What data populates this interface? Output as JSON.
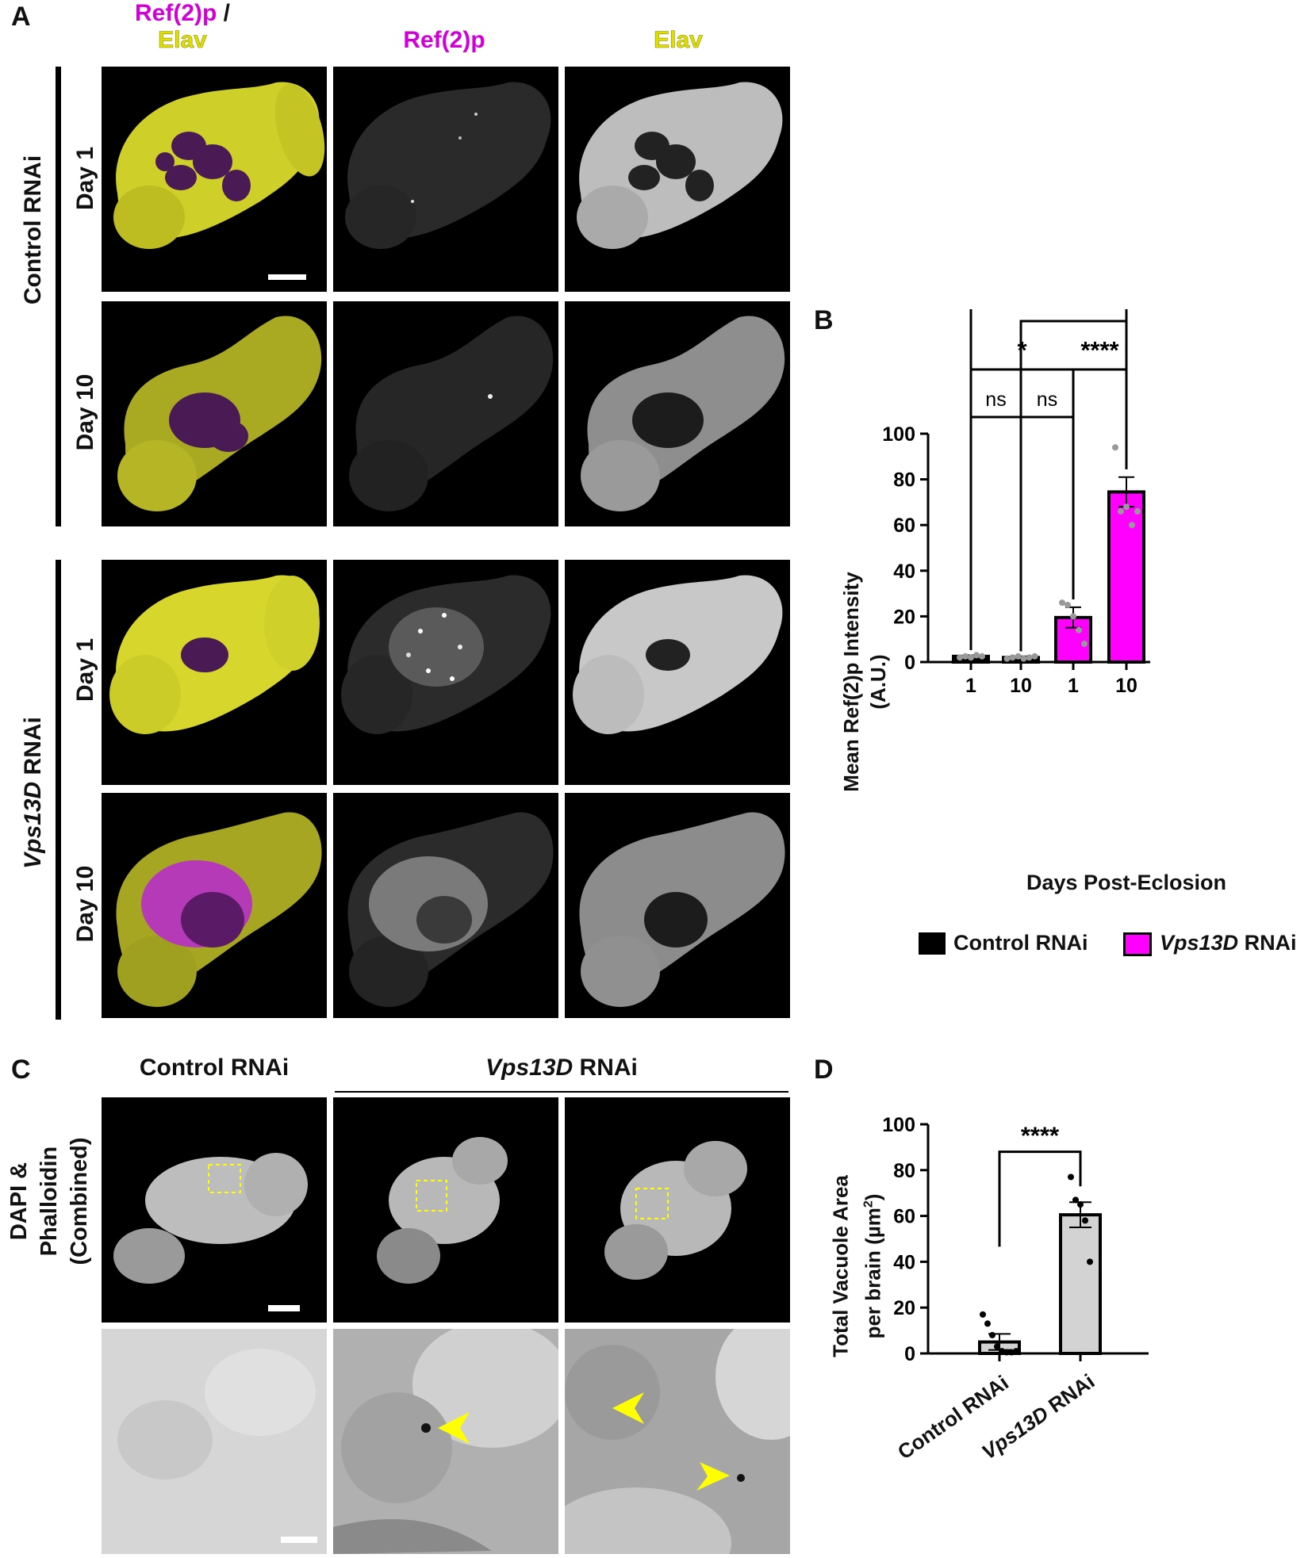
{
  "panel_a": {
    "letter": "A",
    "header_merge_1": "Ref(2)p",
    "header_merge_sep": " /",
    "header_merge_2": "Elav",
    "header_ref2p": "Ref(2)p",
    "header_elav": "Elav",
    "group_control": "Control RNAi",
    "group_vps_italic": "Vps13D",
    "group_vps_rest": " RNAi",
    "row_day1": "Day 1",
    "row_day10": "Day 10"
  },
  "panel_b": {
    "letter": "B",
    "ylabel_line1": "Mean Ref(2)p Intensity",
    "ylabel_line2": "(A.U.)",
    "xlabel": "Days Post-Eclosion",
    "legend_control": "Control RNAi",
    "legend_vps_italic": "Vps13D",
    "legend_vps_rest": " RNAi",
    "sig": [
      "****",
      "****",
      "*",
      "****",
      "ns",
      "ns"
    ],
    "colors": {
      "control": "#000000",
      "vps13d": "#ff00ff"
    }
  },
  "panel_c": {
    "letter": "C",
    "header_control": "Control RNAi",
    "header_vps_italic": "Vps13D",
    "header_vps_rest": " RNAi",
    "side_line1": "DAPI &",
    "side_line2": "Phalloidin",
    "side_line3": "(Combined)"
  },
  "panel_d": {
    "letter": "D",
    "ylabel_line1": "Total Vacuole Area",
    "ylabel_line2": "per brain (µm",
    "ylabel_sup": "2",
    "ylabel_end": ")",
    "sig": "****",
    "cat_control": "Control RNAi",
    "cat_vps_italic": "Vps13D",
    "cat_vps_rest": " RNAi"
  },
  "chart_data": [
    {
      "type": "bar",
      "panel": "B",
      "categories": [
        "1",
        "10",
        "1",
        "10"
      ],
      "groups": [
        "Control RNAi",
        "Control RNAi",
        "Vps13D RNAi",
        "Vps13D RNAi"
      ],
      "values": [
        2.5,
        2,
        19.5,
        74.5
      ],
      "errors": [
        0.5,
        0.5,
        4.5,
        6.5
      ],
      "points": [
        [
          2,
          2.5,
          2,
          3,
          2.5
        ],
        [
          1.5,
          2,
          2.5,
          1.5,
          2,
          2.5
        ],
        [
          26,
          25,
          20,
          14,
          8
        ],
        [
          94,
          66,
          68,
          60,
          66
        ]
      ],
      "xlabel": "Days Post-Eclosion",
      "ylabel": "Mean Ref(2)p Intensity (A.U.)",
      "ylim": [
        0,
        100
      ],
      "yticks": [
        0,
        20,
        40,
        60,
        80,
        100
      ],
      "legend": [
        "Control RNAi",
        "Vps13D RNAi"
      ]
    },
    {
      "type": "bar",
      "panel": "D",
      "categories": [
        "Control RNAi",
        "Vps13D RNAi"
      ],
      "values": [
        5,
        60.5
      ],
      "errors": [
        3.5,
        5.5
      ],
      "points": [
        [
          17,
          13,
          8,
          3,
          1,
          0.5,
          0.5,
          1
        ],
        [
          77,
          67,
          65,
          58,
          40
        ]
      ],
      "ylabel": "Total Vacuole Area per brain (µm2)",
      "ylim": [
        0,
        100
      ],
      "yticks": [
        0,
        20,
        40,
        60,
        80,
        100
      ]
    }
  ]
}
